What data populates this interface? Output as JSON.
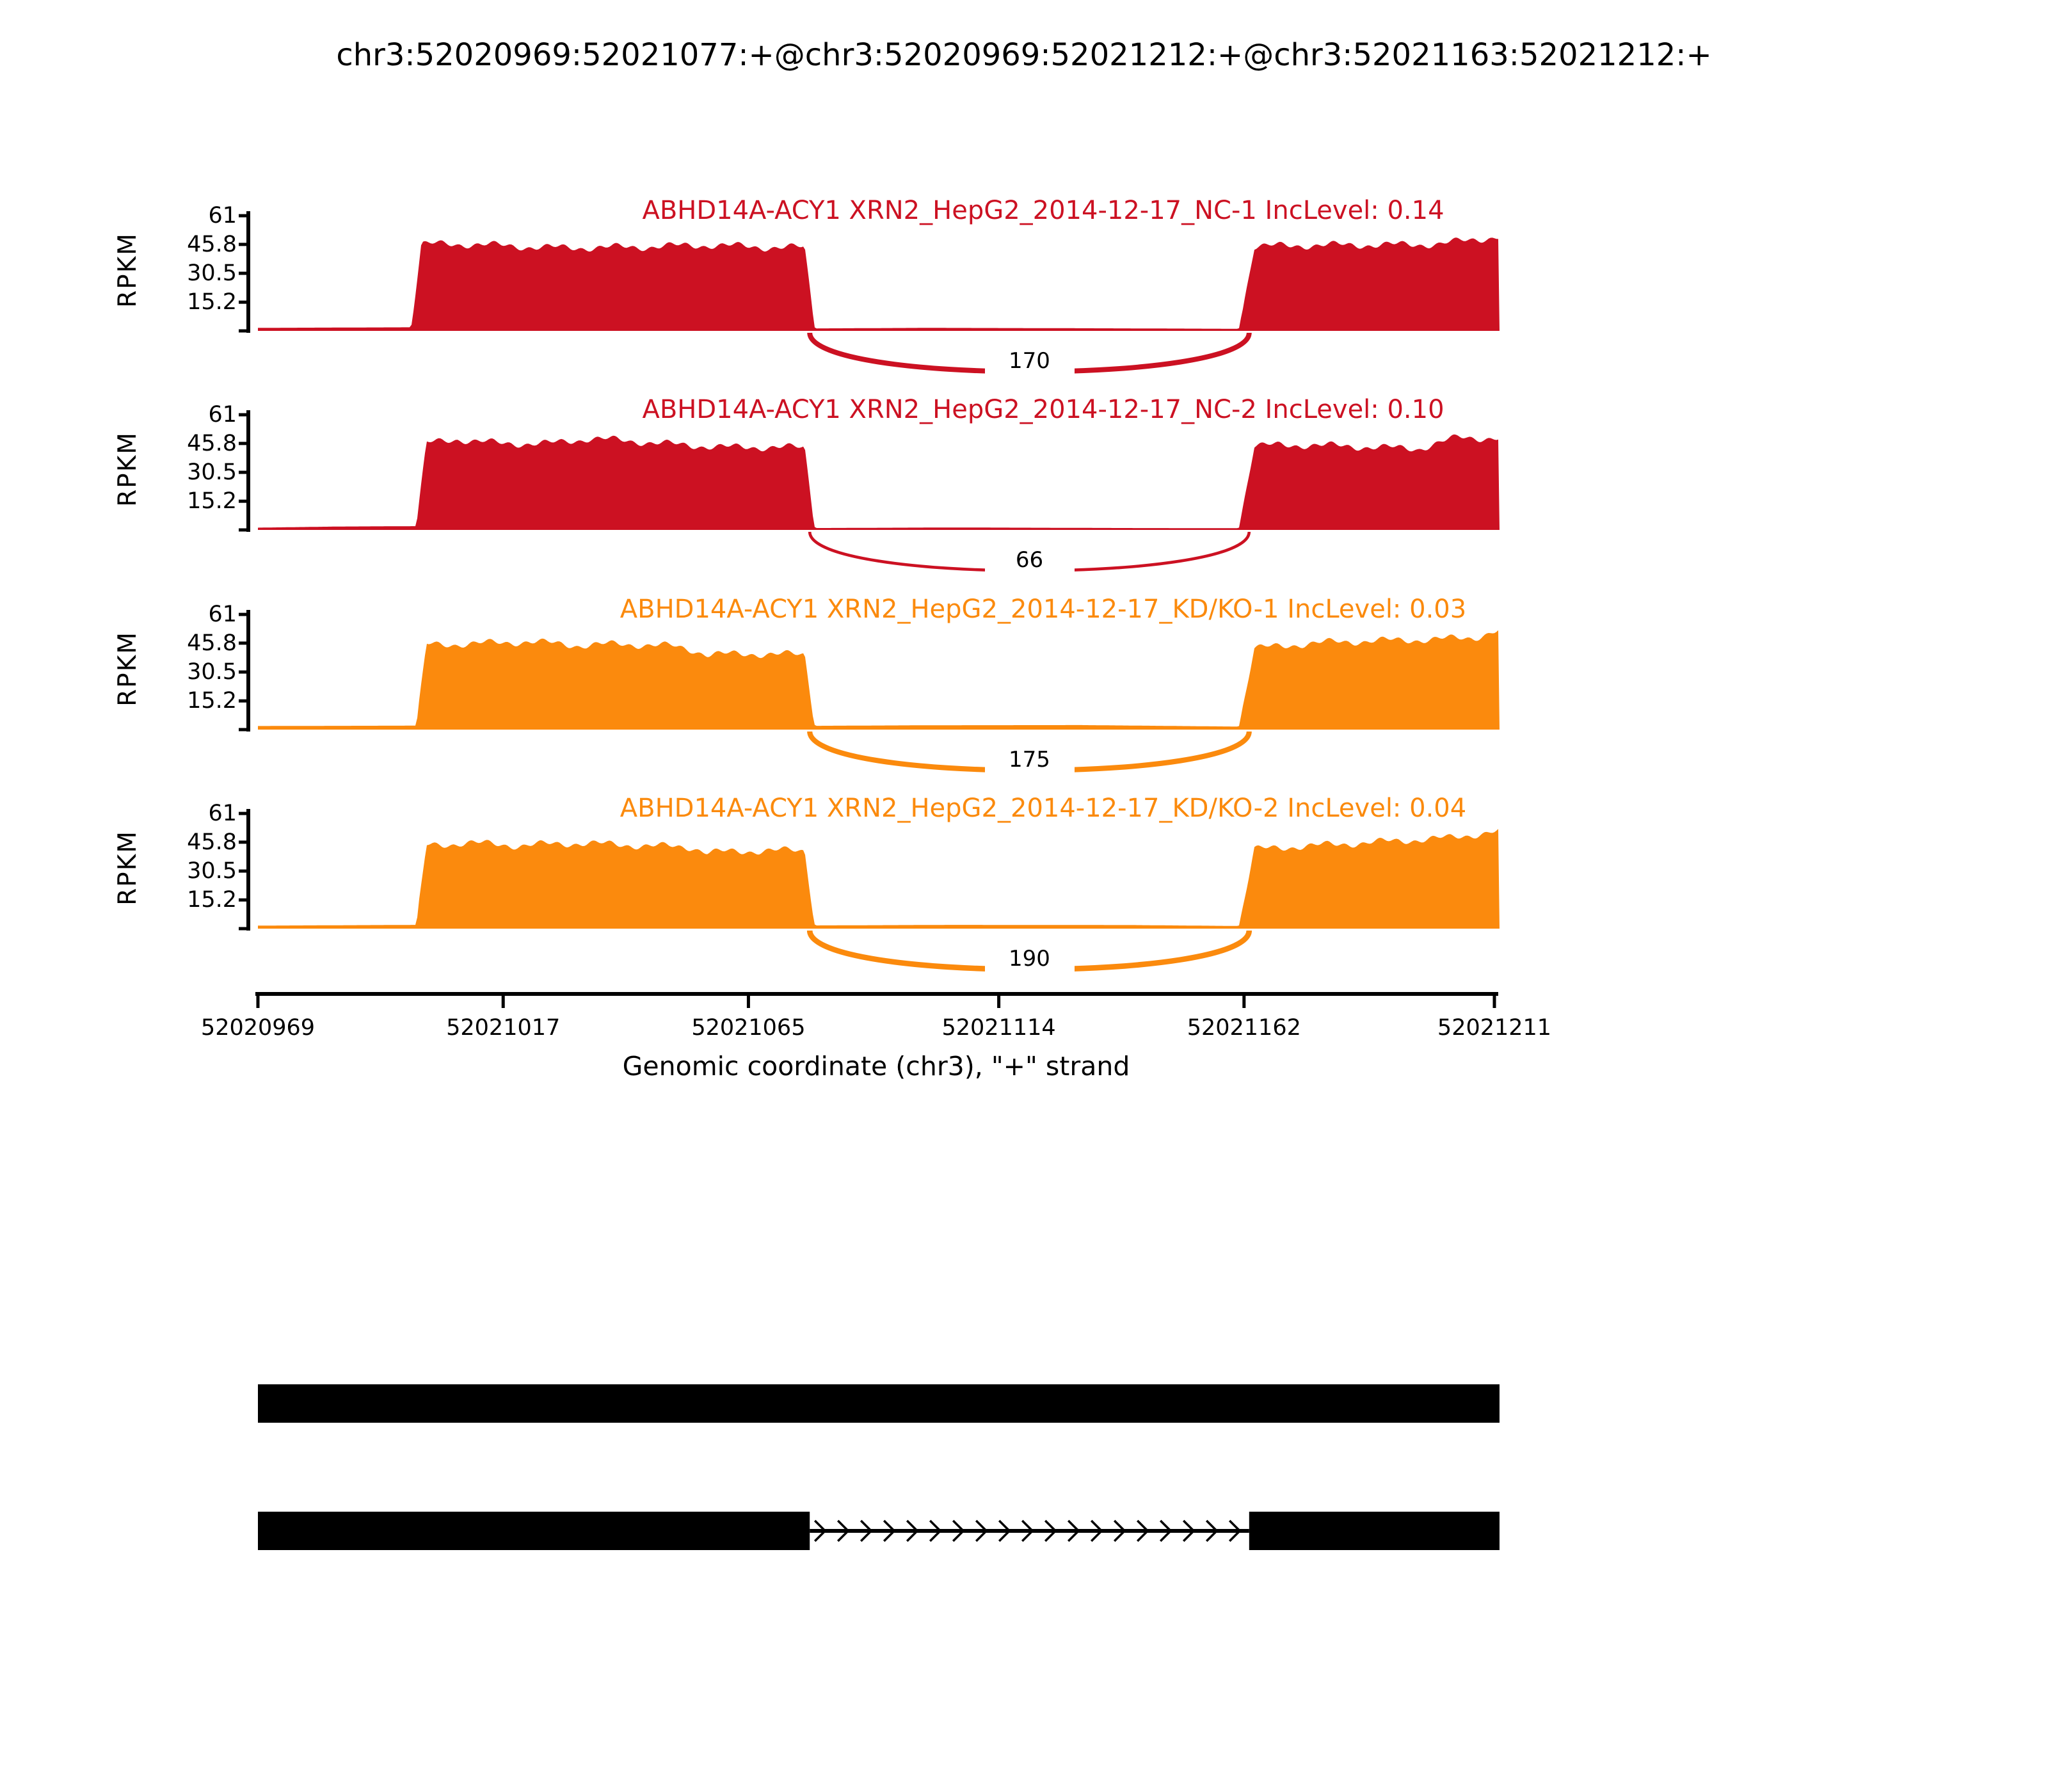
{
  "title": "chr3:52020969:52021077:+@chr3:52020969:52021212:+@chr3:52021163:52021212:+",
  "colors": {
    "group1_red": "#CC1122",
    "group2_orange": "#FB8A0D",
    "annotation_black": "#000000",
    "background": "#FFFFFF"
  },
  "chart_data": {
    "type": "area",
    "subtype": "sashimi-coverage",
    "title": "chr3:52020969:52021077:+@chr3:52020969:52021212:+@chr3:52021163:52021212:+",
    "xlabel": "Genomic coordinate (chr3), \"+\" strand",
    "ylabel": "RPKM",
    "strand": "+",
    "chromosome": "chr3",
    "x_range": [
      52020969,
      52021212
    ],
    "x_ticks": [
      52020969,
      52021017,
      52021065,
      52021114,
      52021162,
      52021211
    ],
    "y_ticks": [
      15.2,
      30.5,
      45.8,
      61
    ],
    "ylim": [
      0,
      61
    ],
    "grid": false,
    "legend_position": "none",
    "tracks": [
      {
        "label": "ABHD14A-ACY1 XRN2_HepG2_2014-12-17_NC-1 IncLevel: 0.14",
        "inc_level": 0.14,
        "color": "#CC1122",
        "junction": {
          "from": 52021077,
          "to": 52021163,
          "count": 170
        },
        "coverage": [
          [
            52020969,
            1.6
          ],
          [
            52020999,
            1.9
          ],
          [
            52021001,
            45.5
          ],
          [
            52021012,
            46
          ],
          [
            52021028,
            44.6
          ],
          [
            52021045,
            44.2
          ],
          [
            52021058,
            44.8
          ],
          [
            52021068,
            44.2
          ],
          [
            52021076,
            44.5
          ],
          [
            52021078,
            1.3
          ],
          [
            52021100,
            1.6
          ],
          [
            52021130,
            1.4
          ],
          [
            52021161,
            1.1
          ],
          [
            52021164,
            44.5
          ],
          [
            52021178,
            44.8
          ],
          [
            52021190,
            45.5
          ],
          [
            52021200,
            46.5
          ],
          [
            52021207,
            49
          ],
          [
            52021212,
            50.5
          ]
        ]
      },
      {
        "label": "ABHD14A-ACY1 XRN2_HepG2_2014-12-17_NC-2 IncLevel: 0.10",
        "inc_level": 0.1,
        "color": "#CC1122",
        "junction": {
          "from": 52021077,
          "to": 52021163,
          "count": 66
        },
        "coverage": [
          [
            52020969,
            1.2
          ],
          [
            52020985,
            1.8
          ],
          [
            52021000,
            2.0
          ],
          [
            52021002,
            46
          ],
          [
            52021008,
            48.5
          ],
          [
            52021016,
            46.5
          ],
          [
            52021026,
            46
          ],
          [
            52021034,
            48.2
          ],
          [
            52021042,
            46.5
          ],
          [
            52021052,
            44.5
          ],
          [
            52021062,
            43.8
          ],
          [
            52021070,
            44.5
          ],
          [
            52021076,
            44
          ],
          [
            52021078,
            1.0
          ],
          [
            52021105,
            1.3
          ],
          [
            52021140,
            1.0
          ],
          [
            52021161,
            0.9
          ],
          [
            52021164,
            44
          ],
          [
            52021175,
            44.6
          ],
          [
            52021188,
            44.2
          ],
          [
            52021196,
            43.6
          ],
          [
            52021204,
            49.5
          ],
          [
            52021212,
            48.5
          ]
        ]
      },
      {
        "label": "ABHD14A-ACY1 XRN2_HepG2_2014-12-17_KD/KO-1 IncLevel: 0.03",
        "inc_level": 0.03,
        "color": "#FB8A0D",
        "junction": {
          "from": 52021077,
          "to": 52021163,
          "count": 175
        },
        "coverage": [
          [
            52020969,
            1.9
          ],
          [
            52021000,
            2.1
          ],
          [
            52021002,
            45.5
          ],
          [
            52021010,
            46
          ],
          [
            52021022,
            46.5
          ],
          [
            52021032,
            44
          ],
          [
            52021040,
            44.8
          ],
          [
            52021050,
            44.2
          ],
          [
            52021054,
            42.5
          ],
          [
            52021057,
            40.2
          ],
          [
            52021066,
            40.8
          ],
          [
            52021076,
            40
          ],
          [
            52021078,
            2.0
          ],
          [
            52021100,
            2.3
          ],
          [
            52021130,
            2.4
          ],
          [
            52021161,
            1.6
          ],
          [
            52021164,
            42.5
          ],
          [
            52021172,
            45
          ],
          [
            52021180,
            47
          ],
          [
            52021190,
            47.8
          ],
          [
            52021200,
            48
          ],
          [
            52021207,
            48.5
          ],
          [
            52021212,
            52
          ]
        ]
      },
      {
        "label": "ABHD14A-ACY1 XRN2_HepG2_2014-12-17_KD/KO-2 IncLevel: 0.04",
        "inc_level": 0.04,
        "color": "#FB8A0D",
        "junction": {
          "from": 52021077,
          "to": 52021163,
          "count": 190
        },
        "coverage": [
          [
            52020969,
            1.6
          ],
          [
            52021000,
            2.0
          ],
          [
            52021002,
            44.5
          ],
          [
            52021010,
            45.5
          ],
          [
            52021020,
            43.5
          ],
          [
            52021032,
            44.8
          ],
          [
            52021044,
            44.2
          ],
          [
            52021054,
            43.8
          ],
          [
            52021057,
            41
          ],
          [
            52021068,
            41.6
          ],
          [
            52021076,
            41
          ],
          [
            52021078,
            1.7
          ],
          [
            52021105,
            2.0
          ],
          [
            52021140,
            1.9
          ],
          [
            52021161,
            1.4
          ],
          [
            52021164,
            42
          ],
          [
            52021172,
            44
          ],
          [
            52021182,
            45.5
          ],
          [
            52021192,
            46.5
          ],
          [
            52021202,
            47.5
          ],
          [
            52021212,
            51
          ]
        ]
      }
    ],
    "isoforms": [
      {
        "exons": [
          [
            52020969,
            52021212
          ]
        ],
        "intron_arrows": false
      },
      {
        "exons": [
          [
            52020969,
            52021077
          ],
          [
            52021163,
            52021212
          ]
        ],
        "intron_arrows": true
      }
    ]
  }
}
